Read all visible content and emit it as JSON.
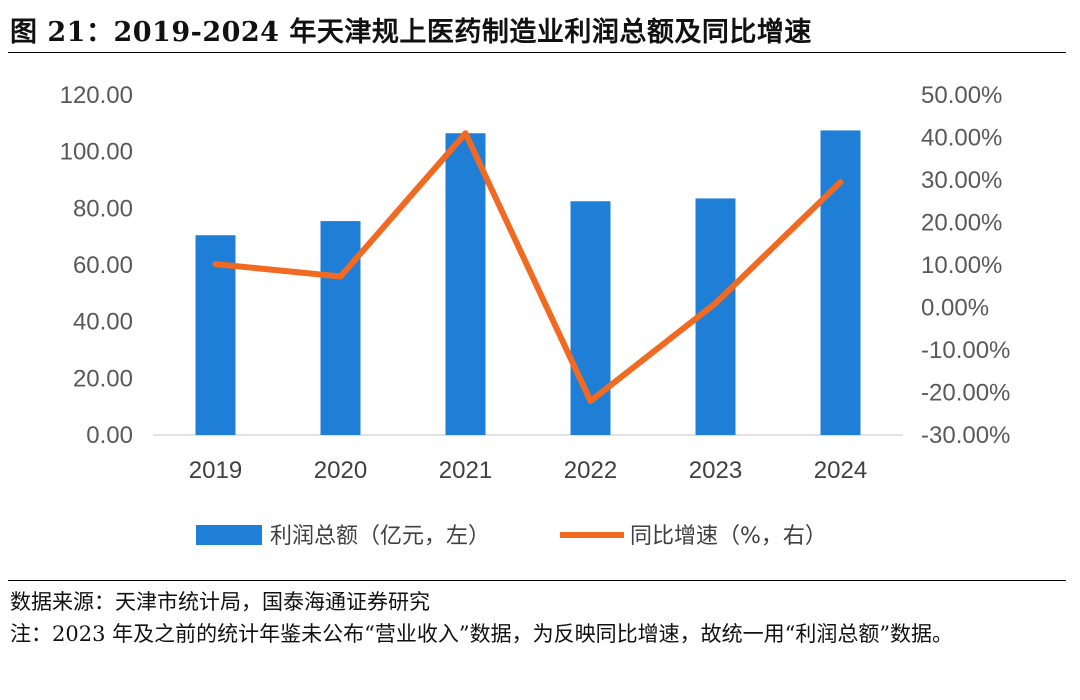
{
  "title": "图 21：2019-2024 年天津规上医药制造业利润总额及同比增速",
  "chart_data": {
    "type": "bar",
    "categories": [
      "2019",
      "2020",
      "2021",
      "2022",
      "2023",
      "2024"
    ],
    "series": [
      {
        "name": "利润总额（亿元，左）",
        "type": "bar",
        "axis": "left",
        "color": "#1f7fd6",
        "values": [
          70.5,
          75.5,
          106.5,
          82.5,
          83.5,
          107.5
        ]
      },
      {
        "name": "同比增速（%，右）",
        "type": "line",
        "axis": "right",
        "color": "#f26a21",
        "values": [
          10.2,
          7.3,
          41.0,
          -22.0,
          1.0,
          29.5
        ]
      }
    ],
    "left_axis": {
      "ylim": [
        0,
        120
      ],
      "ticks": [
        0,
        20,
        40,
        60,
        80,
        100,
        120
      ],
      "tick_labels": [
        "0.00",
        "20.00",
        "40.00",
        "60.00",
        "80.00",
        "100.00",
        "120.00"
      ]
    },
    "right_axis": {
      "ylim": [
        -30,
        50
      ],
      "ticks": [
        -30,
        -20,
        -10,
        0,
        10,
        20,
        30,
        40,
        50
      ],
      "tick_labels": [
        "-30.00%",
        "-20.00%",
        "-10.00%",
        "0.00%",
        "10.00%",
        "20.00%",
        "30.00%",
        "40.00%",
        "50.00%"
      ]
    },
    "legend_position": "bottom-center",
    "grid": false
  },
  "source": "数据来源：天津市统计局，国泰海通证券研究",
  "note": "注：2023 年及之前的统计年鉴未公布“营业收入”数据，为反映同比增速，故统一用“利润总额”数据。"
}
